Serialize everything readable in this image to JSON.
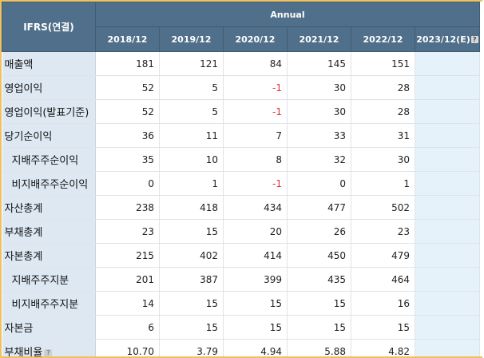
{
  "header": {
    "corner": "IFRS(연결)",
    "group": "Annual",
    "years": [
      "2018/12",
      "2019/12",
      "2020/12",
      "2021/12",
      "2022/12"
    ],
    "estimate_year": "2023/12(E)"
  },
  "rows": [
    {
      "label": "매출액",
      "values": [
        "181",
        "121",
        "84",
        "145",
        "151"
      ]
    },
    {
      "label": "영업이익",
      "values": [
        "52",
        "5",
        "-1",
        "30",
        "28"
      ]
    },
    {
      "label": "영업이익(발표기준)",
      "values": [
        "52",
        "5",
        "-1",
        "30",
        "28"
      ]
    },
    {
      "label": "당기순이익",
      "values": [
        "36",
        "11",
        "7",
        "33",
        "31"
      ]
    },
    {
      "label": "지배주주순이익",
      "values": [
        "35",
        "10",
        "8",
        "32",
        "30"
      ]
    },
    {
      "label": "비지배주주순이익",
      "values": [
        "0",
        "1",
        "-1",
        "0",
        "1"
      ]
    },
    {
      "label": "자산총계",
      "values": [
        "238",
        "418",
        "434",
        "477",
        "502"
      ]
    },
    {
      "label": "부채총계",
      "values": [
        "23",
        "15",
        "20",
        "26",
        "23"
      ]
    },
    {
      "label": "자본총계",
      "values": [
        "215",
        "402",
        "414",
        "450",
        "479"
      ]
    },
    {
      "label": "지배주주지분",
      "values": [
        "201",
        "387",
        "399",
        "435",
        "464"
      ]
    },
    {
      "label": "비지배주주지분",
      "values": [
        "14",
        "15",
        "15",
        "15",
        "16"
      ]
    },
    {
      "label": "자본금",
      "values": [
        "6",
        "15",
        "15",
        "15",
        "15"
      ]
    },
    {
      "label": "부채비율",
      "values": [
        "10.70",
        "3.79",
        "4.94",
        "5.88",
        "4.82"
      ]
    }
  ],
  "colors": {
    "header_bg": "#4f6f8a",
    "label_bg": "#dde8f3",
    "estimate_bg": "#e6f2fa",
    "negative": "#e03030",
    "frame": "#f0c060"
  }
}
